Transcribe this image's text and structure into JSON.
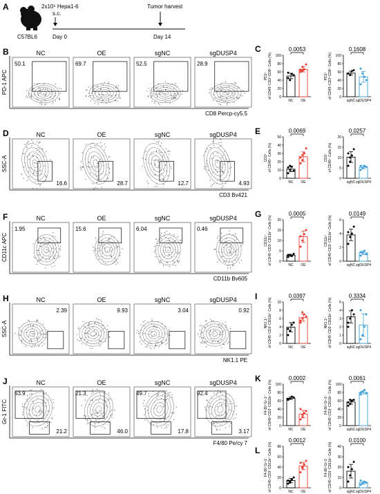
{
  "panelA": {
    "label": "A",
    "mouse": "C57BL6",
    "injection": "2x10⁶ Hepa1-6",
    "route": "s.c.",
    "harvest": "Tumor harvest",
    "day0": "Day 0",
    "day14": "Day 14"
  },
  "groups": [
    "NC",
    "OE",
    "sgNC",
    "sgDUSP4"
  ],
  "flowRows": [
    {
      "label": "B",
      "ylabel": "PD-1 APC",
      "xlabel": "CD8 Percp-cy5.5",
      "values": [
        [
          "50.1"
        ],
        [
          "69.7"
        ],
        [
          "52.5"
        ],
        [
          "28.9"
        ]
      ]
    },
    {
      "label": "D",
      "ylabel": "SSC-A",
      "xlabel": "CD3 Bv421",
      "values": [
        [
          "16.6"
        ],
        [
          "28.7"
        ],
        [
          "12.7"
        ],
        [
          "4.93"
        ]
      ]
    },
    {
      "label": "F",
      "ylabel": "CD11c APC",
      "xlabel": "CD11b Bv605",
      "values": [
        [
          "1.95"
        ],
        [
          "15.6"
        ],
        [
          "6.04"
        ],
        [
          "0.46"
        ]
      ]
    },
    {
      "label": "H",
      "ylabel": "SSC-A",
      "xlabel": "NK1.1 PE",
      "values": [
        [
          "2.39"
        ],
        [
          "9.93"
        ],
        [
          "3.04"
        ],
        [
          "0.92"
        ]
      ]
    },
    {
      "label": "J",
      "ylabel": "Gr-1 FITC",
      "xlabel": "F4/80 Pe/cy 7",
      "values": [
        [
          "63.9",
          "21.2"
        ],
        [
          "21.3",
          "46.0"
        ],
        [
          "49.7",
          "17.8"
        ],
        [
          "92.4",
          "3.17"
        ]
      ]
    }
  ],
  "barPanels": [
    {
      "label": "C",
      "pl": [
        "0.0053",
        "0.1608"
      ],
      "ylabel": [
        "PD1⁺",
        "of CD45⁺CD3⁺CD8⁺ Cells (%)"
      ],
      "left": {
        "ylim": [
          0,
          100
        ],
        "ticks": [
          "0",
          "20",
          "40",
          "60",
          "80",
          "100"
        ],
        "cats": [
          "NC",
          "OE"
        ],
        "means": [
          50,
          66
        ],
        "pts": [
          [
            45,
            40,
            55,
            52,
            58
          ],
          [
            60,
            72,
            66,
            78,
            65,
            63
          ]
        ]
      },
      "right": {
        "ylim": [
          0,
          100
        ],
        "ticks": [
          "0",
          "20",
          "40",
          "60",
          "80",
          "100"
        ],
        "cats": [
          "sgNC",
          "sgDUSP4"
        ],
        "means": [
          57,
          48
        ],
        "pts": [
          [
            56,
            52,
            62,
            64,
            56
          ],
          [
            68,
            56,
            48,
            40,
            30
          ]
        ]
      }
    },
    {
      "label": "E",
      "pl": [
        "0.0069",
        "0.0257"
      ],
      "ylabel": [
        "CD3⁺",
        "of CD45⁺ Cells (%)"
      ],
      "left": {
        "ylim": [
          0,
          50
        ],
        "ticks": [
          "0",
          "10",
          "20",
          "30",
          "40",
          "50"
        ],
        "cats": [
          "NC",
          "OE"
        ],
        "means": [
          11,
          26
        ],
        "pts": [
          [
            6,
            10,
            14,
            9,
            13,
            15
          ],
          [
            18,
            22,
            30,
            36,
            25,
            28
          ]
        ]
      },
      "right": {
        "ylim": [
          0,
          20
        ],
        "ticks": [
          "0",
          "5",
          "10",
          "15",
          "20"
        ],
        "cats": [
          "sgNC",
          "sgDUSP4"
        ],
        "means": [
          10.2,
          5.3
        ],
        "pts": [
          [
            6,
            8,
            11,
            14,
            12,
            10
          ],
          [
            4,
            5,
            6,
            5.5,
            6
          ]
        ]
      }
    },
    {
      "label": "G",
      "pl": [
        "0.0005",
        "0.0149"
      ],
      "ylabel": [
        "CD11c⁺",
        "of CD45⁺CD3⁻CD11b⁺ Cells (%)"
      ],
      "left": {
        "ylim": [
          0,
          20
        ],
        "ticks": [
          "0",
          "5",
          "10",
          "15",
          "20"
        ],
        "cats": [
          "NC",
          "OE"
        ],
        "means": [
          2.8,
          11.8
        ],
        "pts": [
          [
            2,
            3,
            2.5,
            3.5,
            3
          ],
          [
            7,
            10,
            13,
            15,
            12
          ]
        ]
      },
      "right": {
        "ylim": [
          0,
          6
        ],
        "ticks": [
          "0",
          "2",
          "4",
          "6"
        ],
        "cats": [
          "sgNC",
          "sgDUSP4"
        ],
        "means": [
          3.8,
          1.2
        ],
        "pts": [
          [
            2.5,
            3.5,
            4,
            5,
            4.2
          ],
          [
            0.8,
            1.2,
            1.5,
            1,
            1.3
          ]
        ]
      }
    },
    {
      "label": "I",
      "pl": [
        "0.0397",
        "0.3334"
      ],
      "ylabel": [
        "NK1.1⁺",
        "of CD45⁺CD3⁻CD11b⁺ Cells (%)"
      ],
      "left": {
        "ylim": [
          0,
          10
        ],
        "ticks": [
          "0",
          "2",
          "4",
          "6",
          "8",
          "10"
        ],
        "cats": [
          "NC",
          "OE"
        ],
        "means": [
          3.9,
          6.2
        ],
        "pts": [
          [
            2,
            3,
            4.5,
            5,
            3.5
          ],
          [
            5,
            6,
            7,
            6.5,
            5.5,
            7.5
          ]
        ]
      },
      "right": {
        "ylim": [
          0,
          5
        ],
        "ticks": [
          "0",
          "1",
          "2",
          "3",
          "4",
          "5"
        ],
        "cats": [
          "sgNC",
          "sgDUSP4"
        ],
        "means": [
          3.2,
          2.2
        ],
        "pts": [
          [
            2,
            3,
            4,
            3.5,
            2.5
          ],
          [
            0.5,
            1,
            2,
            3.5,
            4
          ]
        ]
      }
    },
    {
      "label": "K",
      "pl": [
        "0.0002",
        "0.0061"
      ],
      "ylabel": [
        "F4-80⁺Gr-1⁺",
        "of CD45⁺CD3⁻CD11b⁺ Cells (%)"
      ],
      "left": {
        "ylim": [
          0,
          100
        ],
        "ticks": [
          "0",
          "20",
          "40",
          "60",
          "80",
          "100"
        ],
        "cats": [
          "NC",
          "OE"
        ],
        "means": [
          66,
          28
        ],
        "pts": [
          [
            62,
            65,
            70,
            68,
            64
          ],
          [
            15,
            20,
            30,
            35,
            40,
            26
          ]
        ]
      },
      "right": {
        "ylim": [
          0,
          100
        ],
        "ticks": [
          "0",
          "20",
          "40",
          "60",
          "80",
          "100"
        ],
        "cats": [
          "sgNC",
          "sgDUSP4"
        ],
        "means": [
          57,
          80
        ],
        "pts": [
          [
            48,
            52,
            60,
            62,
            56,
            62
          ],
          [
            75,
            82,
            86,
            78,
            80
          ]
        ]
      }
    },
    {
      "label": "L",
      "pl": [
        "0.0012",
        "0.0100"
      ],
      "ylabel": [
        "F4-80⁺Gr-1⁻",
        "of CD45⁺CD3⁻CD11b⁺ Cells (%)"
      ],
      "left": {
        "ylim": [
          0,
          80
        ],
        "ticks": [
          "0",
          "20",
          "40",
          "60",
          "80"
        ],
        "cats": [
          "NC",
          "OE"
        ],
        "means": [
          14,
          42
        ],
        "pts": [
          [
            8,
            12,
            16,
            20,
            14,
            10
          ],
          [
            30,
            38,
            45,
            52,
            48,
            40
          ]
        ]
      },
      "right": {
        "ylim": [
          0,
          40
        ],
        "ticks": [
          "0",
          "10",
          "20",
          "30",
          "40"
        ],
        "cats": [
          "sgNC",
          "sgDUSP4"
        ],
        "means": [
          16,
          5
        ],
        "pts": [
          [
            6,
            12,
            18,
            25,
            20
          ],
          [
            3,
            4,
            6,
            5,
            7
          ]
        ]
      }
    }
  ],
  "colors": {
    "nc": "#000000",
    "oe": "#e8392f",
    "sgnc": "#000000",
    "sgdusp4": "#3a9ed8",
    "flow": "#8a8a8a"
  }
}
